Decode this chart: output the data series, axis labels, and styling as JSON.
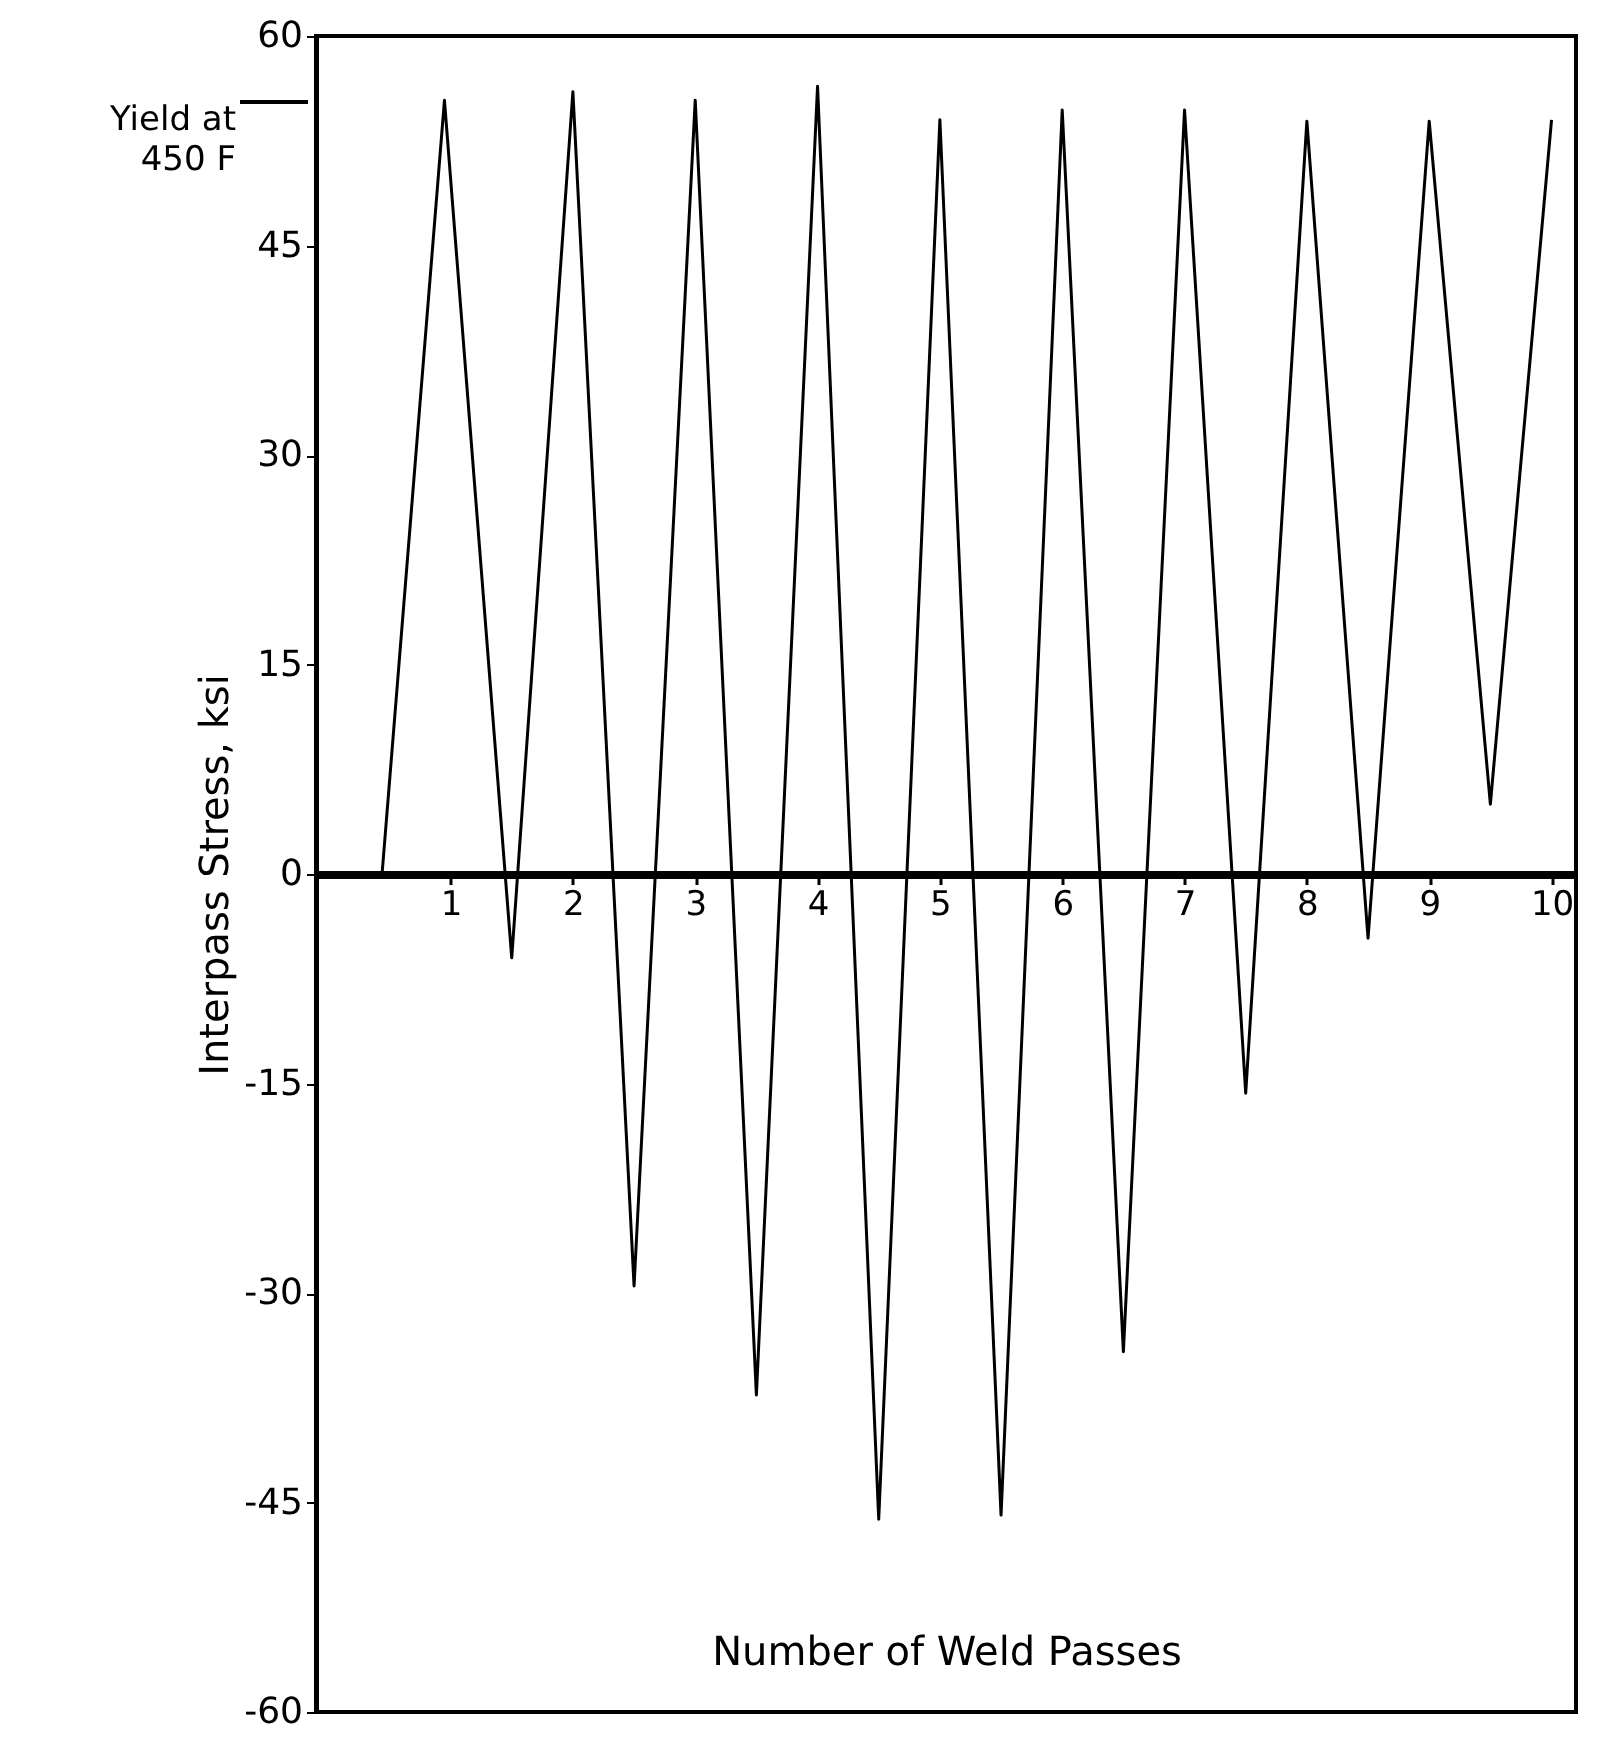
{
  "chart_data": {
    "type": "line",
    "xlabel": "Number of Weld Passes",
    "ylabel": "Interpass Stress, ksi",
    "xlim": [
      -0.1,
      10.2
    ],
    "ylim": [
      -60,
      60
    ],
    "xticks": [
      1,
      2,
      3,
      4,
      5,
      6,
      7,
      8,
      9,
      10
    ],
    "yticks": [
      -60,
      -45,
      -30,
      -15,
      0,
      15,
      30,
      45,
      60
    ],
    "grid": false,
    "marker": "none",
    "line_style": "solid",
    "series": [
      {
        "color": "#000000",
        "x": [
          0.44,
          0.95,
          1.5,
          2.0,
          2.5,
          3.0,
          3.5,
          4.0,
          4.5,
          5.0,
          5.5,
          6.0,
          6.5,
          7.0,
          7.5,
          8.0,
          8.5,
          9.0,
          9.5,
          10.0
        ],
        "values": [
          0,
          55.4,
          -6,
          56,
          -29.5,
          55.4,
          -37.3,
          56.4,
          -46.2,
          54,
          -45.9,
          54.7,
          -34.2,
          54.7,
          -15.7,
          53.9,
          -4.6,
          53.9,
          5,
          54
        ]
      }
    ],
    "annotations": [
      "Yield at 450 F"
    ]
  }
}
